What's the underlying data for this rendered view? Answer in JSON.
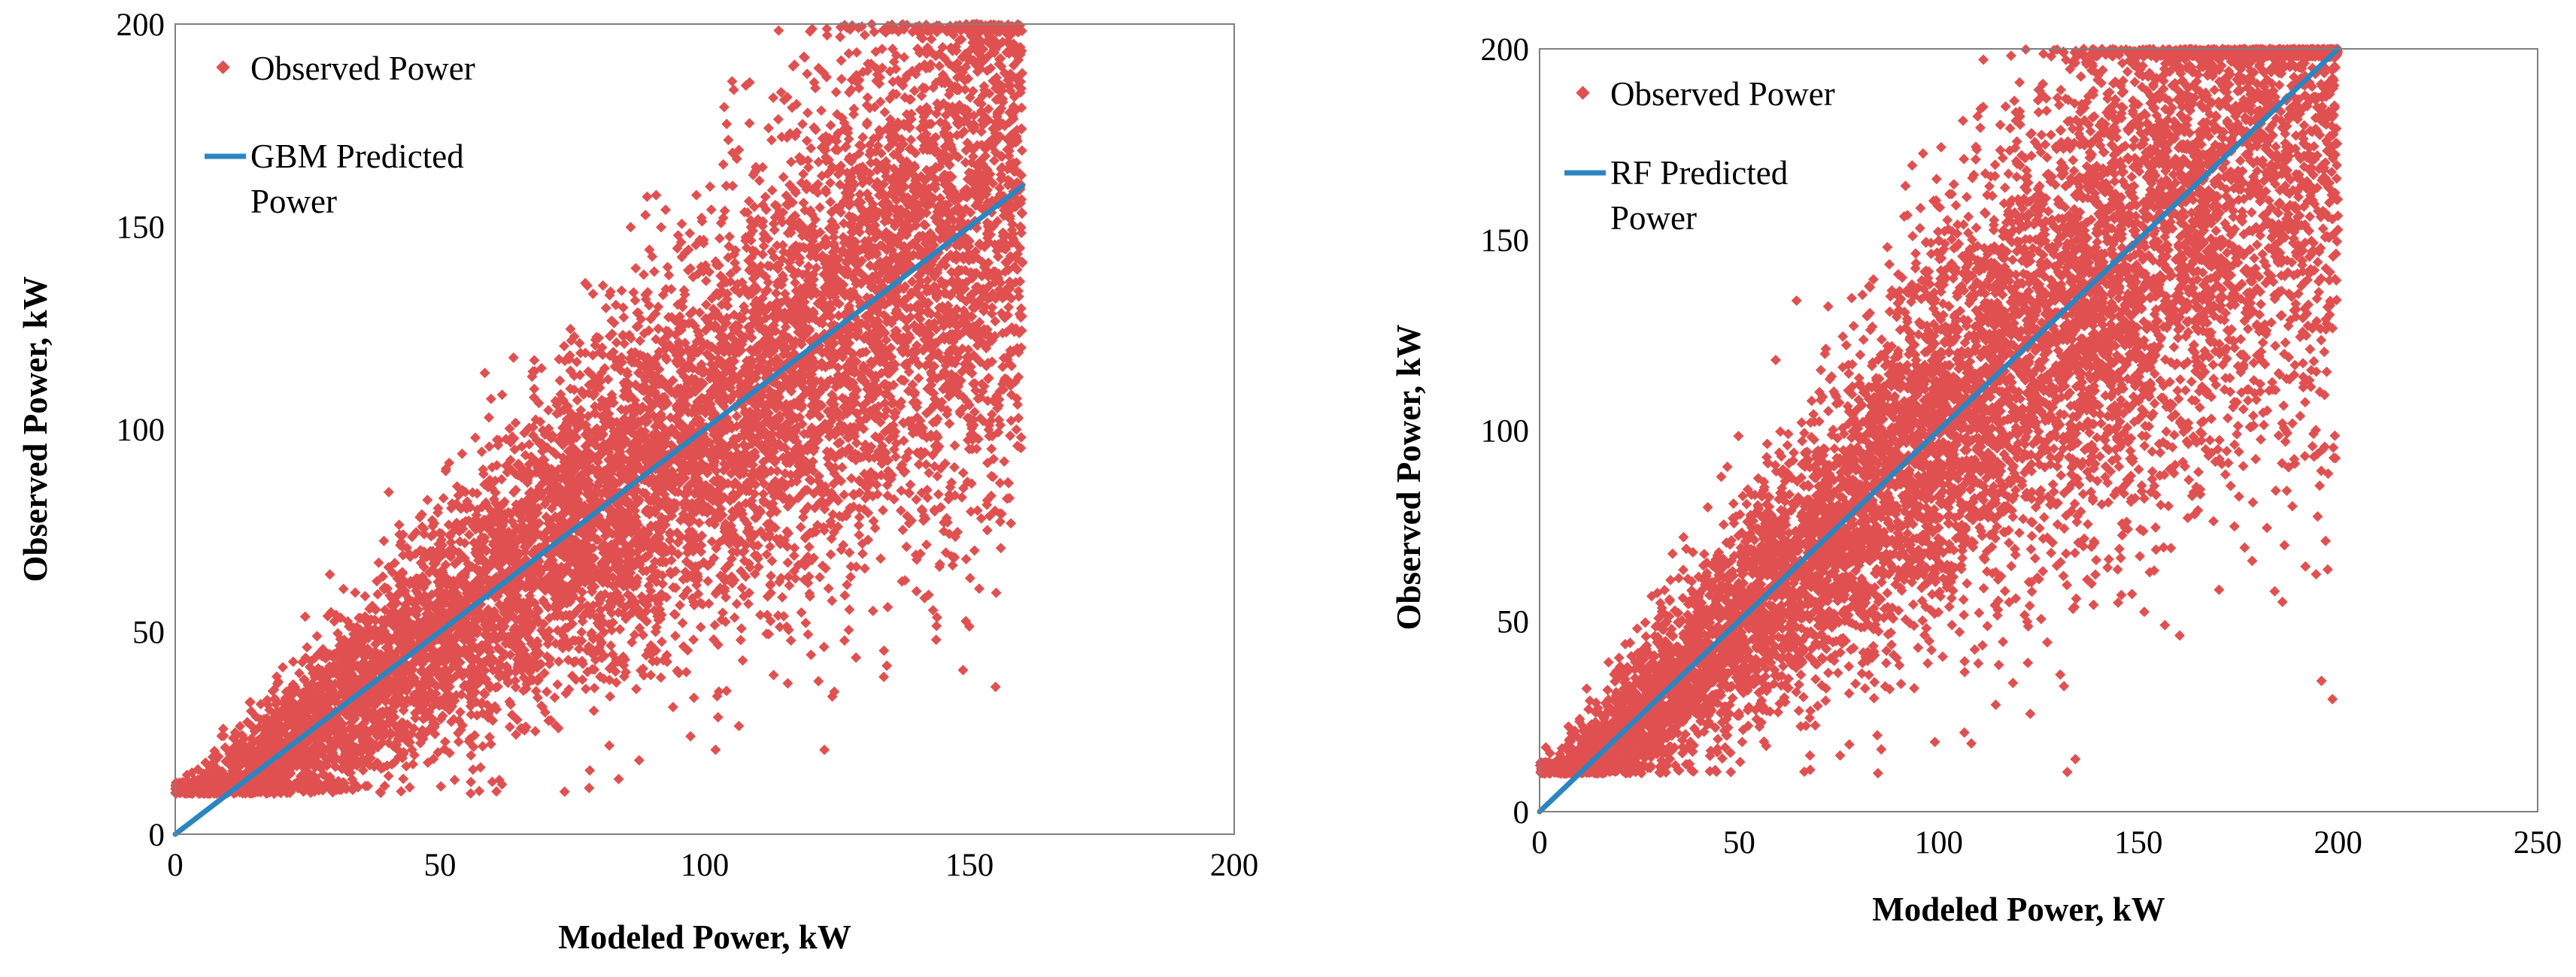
{
  "colors": {
    "observed": "#e05050",
    "predicted": "#2a86c1",
    "axis": "#7f7f7f"
  },
  "chart_data": [
    {
      "type": "scatter",
      "title": "",
      "xlabel": "Modeled Power, kW",
      "ylabel": "Observed Power,  kW",
      "xlim": [
        0,
        200
      ],
      "ylim": [
        0,
        200
      ],
      "xticks": [
        0,
        50,
        100,
        150,
        200
      ],
      "yticks": [
        0,
        50,
        100,
        150,
        200
      ],
      "grid": false,
      "legend_position": "top-left",
      "series": [
        {
          "name": "Observed Power",
          "kind": "scatter",
          "marker": "diamond",
          "color": "#e05050",
          "x_range": [
            0,
            160
          ],
          "y_range": [
            10,
            200
          ],
          "approx_points": 9000,
          "trend": "dense cloud clustered around the line y = x, widening with x; floor near 11 kW for low modeled power"
        },
        {
          "name": "GBM Predicted Power",
          "legend_lines": [
            "GBM Predicted",
            "Power"
          ],
          "kind": "line",
          "color": "#2a86c1",
          "x": [
            0,
            160
          ],
          "y": [
            0,
            160
          ]
        }
      ]
    },
    {
      "type": "scatter",
      "title": "",
      "xlabel": "Modeled Power, kW",
      "ylabel": "Observed Power,  kW",
      "xlim": [
        0,
        250
      ],
      "ylim": [
        0,
        200
      ],
      "xticks": [
        0,
        50,
        100,
        150,
        200,
        250
      ],
      "yticks": [
        0,
        50,
        100,
        150,
        200
      ],
      "grid": false,
      "legend_position": "top-left",
      "series": [
        {
          "name": "Observed Power",
          "kind": "scatter",
          "marker": "diamond",
          "color": "#e05050",
          "x_range": [
            0,
            200
          ],
          "y_range": [
            10,
            200
          ],
          "approx_points": 9000,
          "trend": "dense diagonal cloud around y = x, widest near x = 150; floor near 11 kW for low modeled power"
        },
        {
          "name": "RF Predicted Power",
          "legend_lines": [
            "RF Predicted",
            "Power"
          ],
          "kind": "line",
          "color": "#2a86c1",
          "x": [
            0,
            200
          ],
          "y": [
            0,
            200
          ]
        }
      ]
    }
  ]
}
